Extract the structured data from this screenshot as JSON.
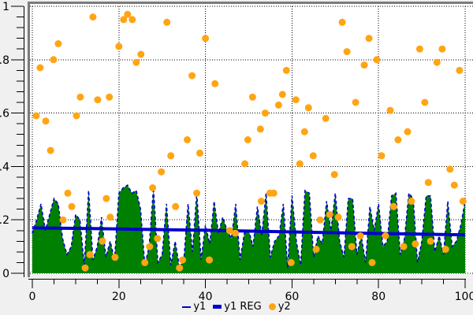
{
  "chart_data": {
    "type": "mixed",
    "title": "",
    "xlabel": "",
    "ylabel": "",
    "xlim": [
      0,
      100
    ],
    "ylim": [
      0,
      1
    ],
    "grid": "dotted",
    "legend_position": "bottom-center",
    "axes": {
      "x": {
        "tick_values": [
          0,
          20,
          40,
          60,
          80,
          100
        ],
        "tick_labels": [
          "0",
          "20",
          "40",
          "60",
          "80",
          "100"
        ],
        "minor_step": 5
      },
      "y": {
        "tick_values": [
          0,
          0.2,
          0.4,
          0.6,
          0.8,
          1
        ],
        "tick_labels": [
          "0",
          "0.2",
          "0.4",
          "0.6",
          "0.8",
          "1"
        ],
        "minor_step": 0.04
      }
    },
    "legend": [
      {
        "label": "y1",
        "marker": "line-thin",
        "color": "#0000cc"
      },
      {
        "label": "y1 REG",
        "marker": "line-thick",
        "color": "#0000cc"
      },
      {
        "label": "y2",
        "marker": "dot",
        "color": "#ffa513"
      }
    ],
    "colors": {
      "background": "#f0f0f0",
      "plot_background": "#ffffff",
      "frame": "#7b7b7b",
      "grid": "#000000",
      "axis": "#000000",
      "area_fill": "#008000",
      "line_blue": "#0000cc",
      "scatter_orange": "#ffa513"
    },
    "series": [
      {
        "name": "y1",
        "type": "area",
        "fill": "#008000",
        "stroke": "#0000cc",
        "stroke_style": "dashed",
        "x_start": 0,
        "x_step": 1,
        "values": [
          0.15,
          0.2,
          0.26,
          0.16,
          0.22,
          0.28,
          0.26,
          0.13,
          0.07,
          0.1,
          0.22,
          0.2,
          0.03,
          0.31,
          0.05,
          0.1,
          0.21,
          0.06,
          0.12,
          0.05,
          0.3,
          0.32,
          0.33,
          0.3,
          0.31,
          0.24,
          0.03,
          0.1,
          0.32,
          0.04,
          0.07,
          0.26,
          0.03,
          0.12,
          0.02,
          0.05,
          0.26,
          0.08,
          0.3,
          0.05,
          0.18,
          0.11,
          0.27,
          0.15,
          0.21,
          0.16,
          0.13,
          0.26,
          0.05,
          0.15,
          0.16,
          0.1,
          0.25,
          0.14,
          0.3,
          0.06,
          0.12,
          0.14,
          0.26,
          0.02,
          0.29,
          0.12,
          0.03,
          0.31,
          0.3,
          0.06,
          0.14,
          0.11,
          0.27,
          0.16,
          0.3,
          0.12,
          0.06,
          0.28,
          0.28,
          0.07,
          0.14,
          0.04,
          0.25,
          0.16,
          0.26,
          0.1,
          0.12,
          0.29,
          0.3,
          0.07,
          0.13,
          0.3,
          0.28,
          0.04,
          0.12,
          0.29,
          0.29,
          0.08,
          0.14,
          0.07,
          0.27,
          0.1,
          0.12,
          0.18,
          0.27
        ]
      },
      {
        "name": "y1 REG",
        "type": "line",
        "color": "#0000cc",
        "width": 4,
        "points": [
          [
            0,
            0.17
          ],
          [
            20,
            0.166
          ],
          [
            40,
            0.161
          ],
          [
            60,
            0.155
          ],
          [
            80,
            0.149
          ],
          [
            100,
            0.144
          ]
        ]
      },
      {
        "name": "y2",
        "type": "scatter",
        "color": "#ffa513",
        "radius": 4.5,
        "points": [
          [
            0.9,
            0.59
          ],
          [
            1.8,
            0.77
          ],
          [
            3.1,
            0.57
          ],
          [
            4.2,
            0.46
          ],
          [
            4.9,
            0.8
          ],
          [
            6,
            0.86
          ],
          [
            7.1,
            0.2
          ],
          [
            8.2,
            0.3
          ],
          [
            9.1,
            0.25
          ],
          [
            10.2,
            0.59
          ],
          [
            11.1,
            0.66
          ],
          [
            12.2,
            0.02
          ],
          [
            13.3,
            0.07
          ],
          [
            14,
            0.96
          ],
          [
            15.1,
            0.65
          ],
          [
            16.2,
            0.12
          ],
          [
            17.1,
            0.28
          ],
          [
            17.8,
            0.66
          ],
          [
            18,
            0.21
          ],
          [
            19.1,
            0.06
          ],
          [
            20,
            0.85
          ],
          [
            21.1,
            0.95
          ],
          [
            22,
            0.97
          ],
          [
            23.1,
            0.95
          ],
          [
            24,
            0.79
          ],
          [
            25.1,
            0.82
          ],
          [
            26,
            0.04
          ],
          [
            27.1,
            0.1
          ],
          [
            27.8,
            0.32
          ],
          [
            28.9,
            0.13
          ],
          [
            29.8,
            0.38
          ],
          [
            31.1,
            0.94
          ],
          [
            32,
            0.44
          ],
          [
            33.1,
            0.25
          ],
          [
            34,
            0.02
          ],
          [
            34.7,
            0.05
          ],
          [
            35.8,
            0.5
          ],
          [
            36.9,
            0.74
          ],
          [
            38,
            0.3
          ],
          [
            38.7,
            0.45
          ],
          [
            40,
            0.88
          ],
          [
            40.9,
            0.05
          ],
          [
            42.2,
            0.71
          ],
          [
            45.6,
            0.16
          ],
          [
            46.9,
            0.15
          ],
          [
            49.1,
            0.41
          ],
          [
            49.8,
            0.5
          ],
          [
            50.9,
            0.66
          ],
          [
            52.7,
            0.54
          ],
          [
            52.9,
            0.27
          ],
          [
            53.8,
            0.6
          ],
          [
            54.9,
            0.3
          ],
          [
            55.8,
            0.3
          ],
          [
            56.9,
            0.63
          ],
          [
            57.8,
            0.67
          ],
          [
            58.7,
            0.76
          ],
          [
            59.8,
            0.04
          ],
          [
            60.9,
            0.65
          ],
          [
            61.8,
            0.41
          ],
          [
            62.9,
            0.53
          ],
          [
            63.8,
            0.62
          ],
          [
            64.9,
            0.44
          ],
          [
            65.6,
            0.09
          ],
          [
            66.5,
            0.2
          ],
          [
            67.8,
            0.58
          ],
          [
            68.7,
            0.22
          ],
          [
            69.8,
            0.37
          ],
          [
            70.7,
            0.21
          ],
          [
            71.6,
            0.94
          ],
          [
            72.7,
            0.83
          ],
          [
            73.8,
            0.1
          ],
          [
            74.7,
            0.64
          ],
          [
            75.8,
            0.14
          ],
          [
            76.7,
            0.78
          ],
          [
            77.8,
            0.88
          ],
          [
            78.5,
            0.04
          ],
          [
            79.6,
            0.8
          ],
          [
            80.7,
            0.44
          ],
          [
            81.6,
            0.14
          ],
          [
            82.7,
            0.61
          ],
          [
            83.5,
            0.25
          ],
          [
            84.5,
            0.5
          ],
          [
            85.8,
            0.1
          ],
          [
            86.7,
            0.53
          ],
          [
            87.6,
            0.27
          ],
          [
            88.5,
            0.11
          ],
          [
            89.5,
            0.84
          ],
          [
            90.7,
            0.64
          ],
          [
            91.5,
            0.34
          ],
          [
            92,
            0.12
          ],
          [
            93.5,
            0.79
          ],
          [
            94.7,
            0.84
          ],
          [
            95.5,
            0.09
          ],
          [
            96.5,
            0.39
          ],
          [
            97.5,
            0.33
          ],
          [
            98.7,
            0.76
          ],
          [
            99.5,
            0.27
          ]
        ]
      }
    ]
  }
}
